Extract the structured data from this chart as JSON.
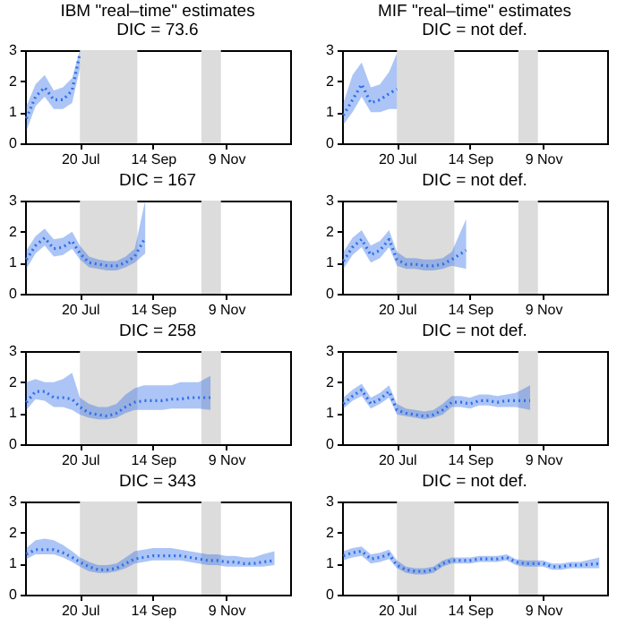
{
  "chart_data": [
    {
      "type": "line",
      "title": "IBM \"real–time\" estimates",
      "subtitle": "DIC = 73.6",
      "xlim": [
        "--06-08",
        "--12-28"
      ],
      "ylim": [
        0,
        3
      ],
      "yticks": [
        0,
        1,
        2,
        3
      ],
      "xticks": [
        {
          "value": "--07-20",
          "label": "20 Jul"
        },
        {
          "value": "--09-14",
          "label": "14 Sep"
        },
        {
          "value": "--11-09",
          "label": "9 Nov"
        }
      ],
      "grid": false,
      "marker": "none",
      "line_style": "dotted",
      "bands": [
        {
          "axis": "x",
          "from": "--07-20",
          "to": "--09-02",
          "color": "#dcdcdc"
        },
        {
          "axis": "x",
          "from": "--10-21",
          "to": "--11-05",
          "color": "#dcdcdc"
        }
      ],
      "series": [
        {
          "color": "#2f6fe8",
          "x": [
            "--06-09",
            "--06-16",
            "--06-23",
            "--06-30",
            "--07-07",
            "--07-14",
            "--07-20"
          ],
          "values": [
            0.8,
            1.5,
            1.8,
            1.4,
            1.4,
            1.7,
            2.9
          ],
          "lower": [
            0.4,
            1.2,
            1.5,
            1.1,
            1.1,
            1.3,
            2.4
          ],
          "upper": [
            1.2,
            1.9,
            2.2,
            1.7,
            1.8,
            2.1,
            3
          ]
        }
      ]
    },
    {
      "type": "line",
      "title": "MIF \"real–time\" estimates",
      "subtitle": "DIC = not def.",
      "xlim": [
        "--06-08",
        "--12-28"
      ],
      "ylim": [
        0,
        3
      ],
      "yticks": [
        0,
        1,
        2,
        3
      ],
      "xticks": [
        {
          "value": "--07-20",
          "label": "20 Jul"
        },
        {
          "value": "--09-14",
          "label": "14 Sep"
        },
        {
          "value": "--11-09",
          "label": "9 Nov"
        }
      ],
      "grid": false,
      "marker": "none",
      "line_style": "dotted",
      "bands": [
        {
          "axis": "x",
          "from": "--07-20",
          "to": "--09-02",
          "color": "#dcdcdc"
        },
        {
          "axis": "x",
          "from": "--10-21",
          "to": "--11-05",
          "color": "#dcdcdc"
        }
      ],
      "series": [
        {
          "color": "#2f6fe8",
          "x": [
            "--06-09",
            "--06-16",
            "--06-23",
            "--06-30",
            "--07-07",
            "--07-14",
            "--07-20"
          ],
          "values": [
            0.9,
            1.4,
            1.9,
            1.3,
            1.4,
            1.6,
            1.75
          ],
          "lower": [
            0.6,
            1.0,
            1.5,
            1.0,
            1.0,
            1.1,
            1.1
          ],
          "upper": [
            1.3,
            2.2,
            2.6,
            1.8,
            1.9,
            2.3,
            2.9
          ]
        }
      ]
    },
    {
      "type": "line",
      "title": "DIC = 167",
      "xlim": [
        "--06-08",
        "--12-28"
      ],
      "ylim": [
        0,
        3
      ],
      "yticks": [
        0,
        1,
        2,
        3
      ],
      "xticks": [
        {
          "value": "--07-20",
          "label": "20 Jul"
        },
        {
          "value": "--09-14",
          "label": "14 Sep"
        },
        {
          "value": "--11-09",
          "label": "9 Nov"
        }
      ],
      "grid": false,
      "marker": "none",
      "line_style": "dotted",
      "bands": [
        {
          "axis": "x",
          "from": "--07-20",
          "to": "--09-02",
          "color": "#dcdcdc"
        },
        {
          "axis": "x",
          "from": "--10-21",
          "to": "--11-05",
          "color": "#dcdcdc"
        }
      ],
      "series": [
        {
          "color": "#2f6fe8",
          "x": [
            "--06-09",
            "--06-16",
            "--06-23",
            "--06-30",
            "--07-07",
            "--07-14",
            "--07-20",
            "--07-27",
            "--08-03",
            "--08-10",
            "--08-17",
            "--08-24",
            "--08-31",
            "--09-08"
          ],
          "values": [
            1.1,
            1.55,
            1.8,
            1.45,
            1.5,
            1.7,
            1.3,
            1.0,
            0.95,
            0.9,
            0.9,
            1.0,
            1.2,
            1.8
          ],
          "lower": [
            0.8,
            1.3,
            1.55,
            1.2,
            1.25,
            1.45,
            1.1,
            0.85,
            0.8,
            0.75,
            0.75,
            0.85,
            1.0,
            1.3
          ],
          "upper": [
            1.4,
            1.85,
            2.1,
            1.75,
            1.8,
            2.0,
            1.55,
            1.2,
            1.1,
            1.05,
            1.05,
            1.2,
            1.45,
            3
          ]
        }
      ]
    },
    {
      "type": "line",
      "title": "DIC = not def.",
      "xlim": [
        "--06-08",
        "--12-28"
      ],
      "ylim": [
        0,
        3
      ],
      "yticks": [
        0,
        1,
        2,
        3
      ],
      "xticks": [
        {
          "value": "--07-20",
          "label": "20 Jul"
        },
        {
          "value": "--09-14",
          "label": "14 Sep"
        },
        {
          "value": "--11-09",
          "label": "9 Nov"
        }
      ],
      "grid": false,
      "marker": "none",
      "line_style": "dotted",
      "bands": [
        {
          "axis": "x",
          "from": "--07-20",
          "to": "--09-02",
          "color": "#dcdcdc"
        },
        {
          "axis": "x",
          "from": "--10-21",
          "to": "--11-05",
          "color": "#dcdcdc"
        }
      ],
      "series": [
        {
          "color": "#2f6fe8",
          "x": [
            "--06-09",
            "--06-16",
            "--06-23",
            "--06-30",
            "--07-07",
            "--07-14",
            "--07-20",
            "--07-27",
            "--08-03",
            "--08-10",
            "--08-17",
            "--08-24",
            "--08-31",
            "--09-11"
          ],
          "values": [
            1.05,
            1.5,
            1.75,
            1.25,
            1.4,
            1.75,
            1.1,
            0.95,
            0.95,
            0.9,
            0.9,
            0.95,
            1.1,
            1.4
          ],
          "lower": [
            0.8,
            1.25,
            1.5,
            1.0,
            1.15,
            1.5,
            0.9,
            0.8,
            0.8,
            0.75,
            0.75,
            0.8,
            0.9,
            0.8
          ],
          "upper": [
            1.35,
            1.8,
            2.05,
            1.55,
            1.7,
            2.05,
            1.35,
            1.15,
            1.15,
            1.1,
            1.1,
            1.15,
            1.35,
            2.4
          ]
        }
      ]
    },
    {
      "type": "line",
      "title": "DIC = 258",
      "xlim": [
        "--06-08",
        "--12-28"
      ],
      "ylim": [
        0,
        3
      ],
      "yticks": [
        0,
        1,
        2,
        3
      ],
      "xticks": [
        {
          "value": "--07-20",
          "label": "20 Jul"
        },
        {
          "value": "--09-14",
          "label": "14 Sep"
        },
        {
          "value": "--11-09",
          "label": "9 Nov"
        }
      ],
      "grid": false,
      "marker": "none",
      "line_style": "dotted",
      "bands": [
        {
          "axis": "x",
          "from": "--07-20",
          "to": "--09-02",
          "color": "#dcdcdc"
        },
        {
          "axis": "x",
          "from": "--10-21",
          "to": "--11-05",
          "color": "#dcdcdc"
        }
      ],
      "series": [
        {
          "color": "#2f6fe8",
          "x": [
            "--06-09",
            "--06-16",
            "--06-23",
            "--06-30",
            "--07-07",
            "--07-14",
            "--07-20",
            "--07-27",
            "--08-03",
            "--08-10",
            "--08-17",
            "--08-24",
            "--08-31",
            "--09-07",
            "--09-14",
            "--09-21",
            "--09-28",
            "--10-05",
            "--10-12",
            "--10-19",
            "--10-28"
          ],
          "values": [
            1.35,
            1.7,
            1.7,
            1.5,
            1.5,
            1.45,
            1.2,
            1.0,
            0.95,
            0.9,
            1.0,
            1.2,
            1.35,
            1.4,
            1.4,
            1.4,
            1.45,
            1.45,
            1.5,
            1.5,
            1.5
          ],
          "lower": [
            1.1,
            1.45,
            1.4,
            1.2,
            1.2,
            1.1,
            0.95,
            0.85,
            0.8,
            0.8,
            0.85,
            1.0,
            1.1,
            1.1,
            1.1,
            1.1,
            1.15,
            1.15,
            1.15,
            1.15,
            1.1
          ],
          "upper": [
            2.0,
            2.1,
            2.0,
            2.0,
            2.1,
            2.3,
            1.5,
            1.3,
            1.2,
            1.2,
            1.3,
            1.6,
            1.8,
            1.9,
            1.9,
            1.9,
            1.9,
            2.0,
            2.0,
            2.0,
            2.2
          ]
        }
      ]
    },
    {
      "type": "line",
      "title": "DIC = not def.",
      "xlim": [
        "--06-08",
        "--12-28"
      ],
      "ylim": [
        0,
        3
      ],
      "yticks": [
        0,
        1,
        2,
        3
      ],
      "xticks": [
        {
          "value": "--07-20",
          "label": "20 Jul"
        },
        {
          "value": "--09-14",
          "label": "14 Sep"
        },
        {
          "value": "--11-09",
          "label": "9 Nov"
        }
      ],
      "grid": false,
      "marker": "none",
      "line_style": "dotted",
      "bands": [
        {
          "axis": "x",
          "from": "--07-20",
          "to": "--09-02",
          "color": "#dcdcdc"
        },
        {
          "axis": "x",
          "from": "--10-21",
          "to": "--11-05",
          "color": "#dcdcdc"
        }
      ],
      "series": [
        {
          "color": "#2f6fe8",
          "x": [
            "--06-09",
            "--06-16",
            "--06-23",
            "--06-30",
            "--07-07",
            "--07-14",
            "--07-20",
            "--07-27",
            "--08-03",
            "--08-10",
            "--08-17",
            "--08-24",
            "--08-31",
            "--09-07",
            "--09-14",
            "--09-21",
            "--09-28",
            "--10-05",
            "--10-12",
            "--10-19",
            "--10-30"
          ],
          "values": [
            1.3,
            1.55,
            1.75,
            1.3,
            1.45,
            1.7,
            1.1,
            1.0,
            0.95,
            0.9,
            0.95,
            1.1,
            1.35,
            1.35,
            1.3,
            1.4,
            1.4,
            1.35,
            1.4,
            1.4,
            1.4
          ],
          "lower": [
            1.15,
            1.4,
            1.55,
            1.15,
            1.3,
            1.5,
            0.95,
            0.9,
            0.85,
            0.8,
            0.85,
            0.95,
            1.2,
            1.2,
            1.15,
            1.25,
            1.25,
            1.2,
            1.2,
            1.2,
            1.1
          ],
          "upper": [
            1.5,
            1.75,
            1.95,
            1.5,
            1.65,
            1.9,
            1.3,
            1.15,
            1.1,
            1.05,
            1.1,
            1.3,
            1.55,
            1.55,
            1.5,
            1.6,
            1.6,
            1.55,
            1.6,
            1.65,
            1.9
          ]
        }
      ]
    },
    {
      "type": "line",
      "title": "DIC = 343",
      "xlim": [
        "--06-08",
        "--12-28"
      ],
      "ylim": [
        0,
        3
      ],
      "yticks": [
        0,
        1,
        2,
        3
      ],
      "xticks": [
        {
          "value": "--07-20",
          "label": "20 Jul"
        },
        {
          "value": "--09-14",
          "label": "14 Sep"
        },
        {
          "value": "--11-09",
          "label": "9 Nov"
        }
      ],
      "grid": false,
      "marker": "none",
      "line_style": "dotted",
      "bands": [
        {
          "axis": "x",
          "from": "--07-20",
          "to": "--09-02",
          "color": "#dcdcdc"
        },
        {
          "axis": "x",
          "from": "--10-21",
          "to": "--11-05",
          "color": "#dcdcdc"
        }
      ],
      "series": [
        {
          "color": "#2f6fe8",
          "x": [
            "--06-09",
            "--06-16",
            "--06-23",
            "--06-30",
            "--07-07",
            "--07-14",
            "--07-20",
            "--07-27",
            "--08-03",
            "--08-10",
            "--08-17",
            "--08-24",
            "--08-31",
            "--09-07",
            "--09-14",
            "--09-21",
            "--09-28",
            "--10-05",
            "--10-12",
            "--10-19",
            "--10-26",
            "--11-02",
            "--11-09",
            "--11-16",
            "--11-23",
            "--11-30",
            "--12-07",
            "--12-16"
          ],
          "values": [
            1.3,
            1.45,
            1.45,
            1.45,
            1.35,
            1.2,
            1.05,
            0.9,
            0.8,
            0.8,
            0.85,
            1.0,
            1.15,
            1.2,
            1.25,
            1.25,
            1.25,
            1.25,
            1.2,
            1.15,
            1.1,
            1.1,
            1.05,
            1.05,
            1.0,
            1.0,
            1.05,
            1.1
          ],
          "lower": [
            1.15,
            1.3,
            1.3,
            1.3,
            1.2,
            1.05,
            0.9,
            0.75,
            0.7,
            0.7,
            0.75,
            0.85,
            1.0,
            1.05,
            1.1,
            1.1,
            1.1,
            1.1,
            1.05,
            1.0,
            0.95,
            0.95,
            0.9,
            0.9,
            0.9,
            0.9,
            0.9,
            0.95
          ],
          "upper": [
            1.5,
            1.75,
            1.8,
            1.75,
            1.6,
            1.4,
            1.2,
            1.05,
            0.95,
            0.95,
            1.0,
            1.2,
            1.4,
            1.45,
            1.5,
            1.5,
            1.5,
            1.45,
            1.4,
            1.35,
            1.3,
            1.3,
            1.25,
            1.25,
            1.2,
            1.2,
            1.3,
            1.4
          ]
        }
      ]
    },
    {
      "type": "line",
      "title": "DIC = not def.",
      "xlim": [
        "--06-08",
        "--12-28"
      ],
      "ylim": [
        0,
        3
      ],
      "yticks": [
        0,
        1,
        2,
        3
      ],
      "xticks": [
        {
          "value": "--07-20",
          "label": "20 Jul"
        },
        {
          "value": "--09-14",
          "label": "14 Sep"
        },
        {
          "value": "--11-09",
          "label": "9 Nov"
        }
      ],
      "grid": false,
      "marker": "none",
      "line_style": "dotted",
      "bands": [
        {
          "axis": "x",
          "from": "--07-20",
          "to": "--09-02",
          "color": "#dcdcdc"
        },
        {
          "axis": "x",
          "from": "--10-21",
          "to": "--11-05",
          "color": "#dcdcdc"
        }
      ],
      "series": [
        {
          "color": "#2f6fe8",
          "x": [
            "--06-09",
            "--06-16",
            "--06-23",
            "--06-30",
            "--07-07",
            "--07-14",
            "--07-20",
            "--07-27",
            "--08-03",
            "--08-10",
            "--08-17",
            "--08-24",
            "--08-31",
            "--09-07",
            "--09-14",
            "--09-21",
            "--09-28",
            "--10-05",
            "--10-12",
            "--10-19",
            "--10-26",
            "--11-02",
            "--11-09",
            "--11-16",
            "--11-23",
            "--11-30",
            "--12-07",
            "--12-22"
          ],
          "values": [
            1.25,
            1.35,
            1.4,
            1.15,
            1.2,
            1.3,
            0.95,
            0.8,
            0.75,
            0.75,
            0.8,
            1.0,
            1.1,
            1.1,
            1.1,
            1.15,
            1.15,
            1.15,
            1.2,
            1.05,
            1.0,
            1.0,
            1.0,
            0.9,
            0.9,
            0.95,
            0.95,
            1.0
          ],
          "lower": [
            1.1,
            1.2,
            1.25,
            1.0,
            1.05,
            1.15,
            0.85,
            0.7,
            0.65,
            0.65,
            0.7,
            0.9,
            1.0,
            1.0,
            1.0,
            1.05,
            1.05,
            1.05,
            1.1,
            0.95,
            0.9,
            0.9,
            0.9,
            0.8,
            0.8,
            0.85,
            0.85,
            0.85
          ],
          "upper": [
            1.4,
            1.5,
            1.55,
            1.3,
            1.35,
            1.45,
            1.1,
            0.9,
            0.85,
            0.85,
            0.9,
            1.1,
            1.2,
            1.2,
            1.2,
            1.25,
            1.25,
            1.25,
            1.3,
            1.15,
            1.1,
            1.1,
            1.1,
            1.0,
            1.0,
            1.05,
            1.05,
            1.2
          ]
        }
      ]
    }
  ]
}
